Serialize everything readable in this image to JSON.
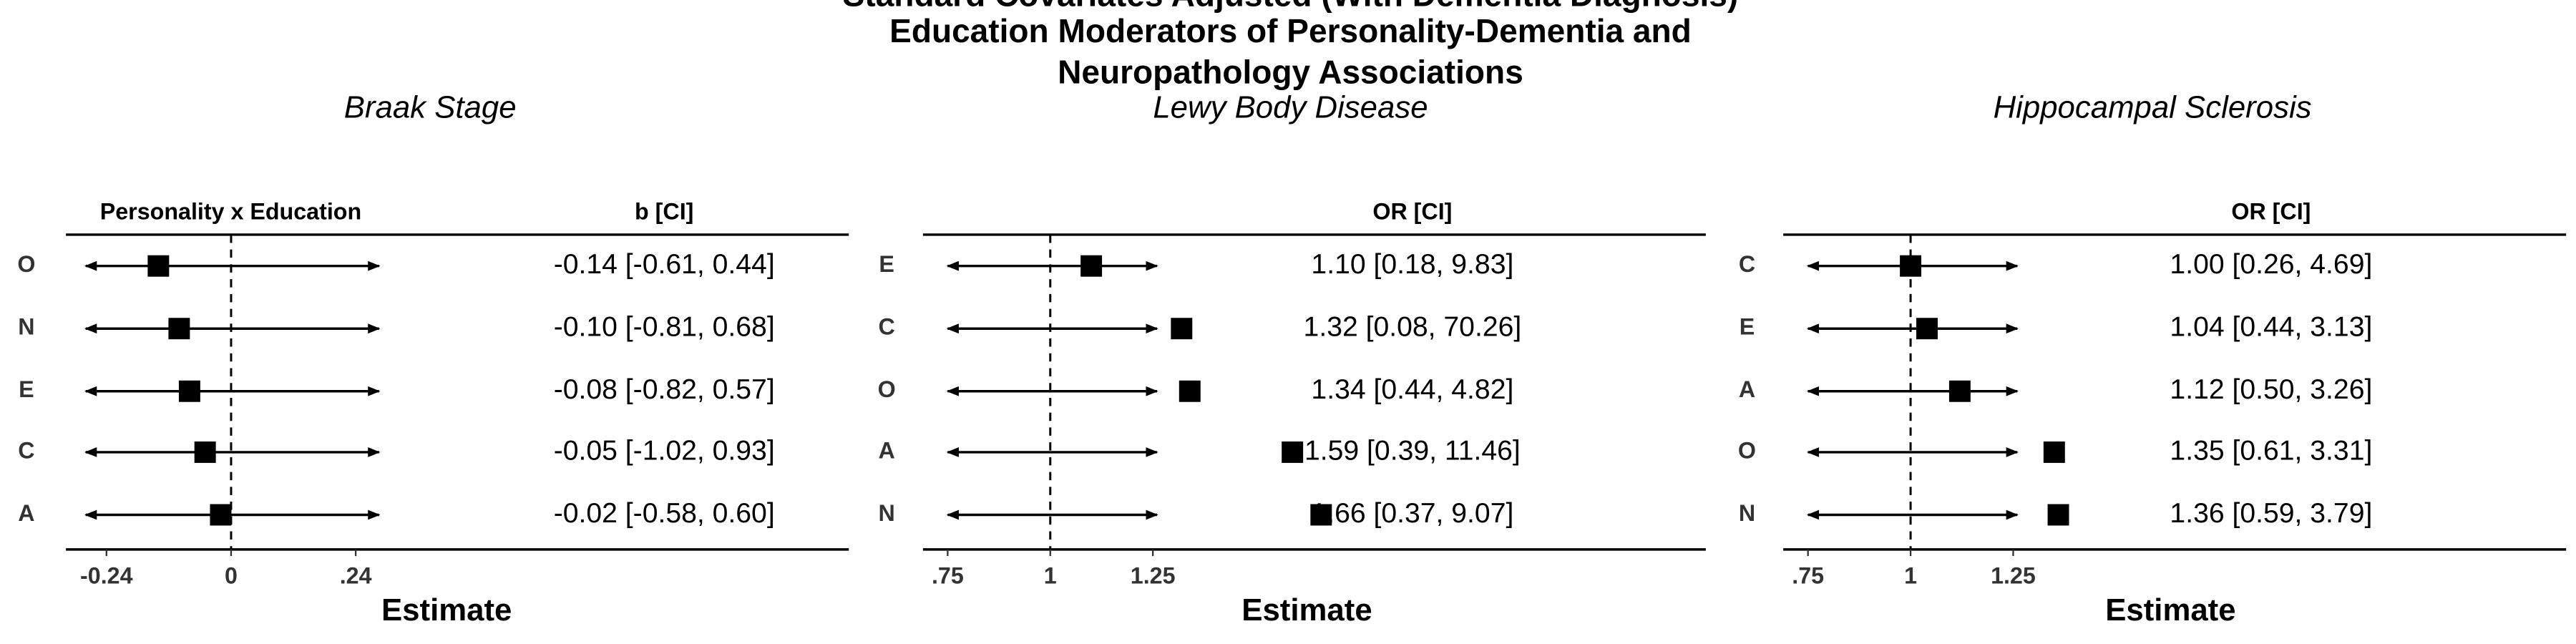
{
  "title": [
    "Standard Covariates Adjusted (With Dementia Diagnosis)",
    "Education Moderators of Personality-Dementia and",
    "Neuropathology Associations"
  ],
  "chart_data": [
    {
      "type": "forest",
      "subtitle": "Braak Stage",
      "label_header": "Personality x Education",
      "value_header": "b [CI]",
      "categories": [
        "O",
        "N",
        "E",
        "C",
        "A"
      ],
      "values": [
        -0.14,
        -0.1,
        -0.08,
        -0.05,
        -0.02
      ],
      "lower": [
        -0.61,
        -0.81,
        -0.82,
        -1.02,
        -0.58
      ],
      "upper": [
        0.44,
        0.68,
        0.57,
        0.93,
        0.6
      ],
      "value_labels": [
        "-0.14 [-0.61, 0.44]",
        "-0.10 [-0.81, 0.68]",
        "-0.08 [-0.82, 0.57]",
        "-0.05 [-1.02, 0.93]",
        "-0.02 [-0.58, 0.60]"
      ],
      "xlim": [
        -0.28,
        0.285
      ],
      "xticks": [
        -0.24,
        0,
        {
          "value": 0.24,
          "label": ".24"
        }
      ],
      "ref_line": 0,
      "xlabel": "Estimate",
      "color": "#000000"
    },
    {
      "type": "forest",
      "subtitle": "Lewy Body Disease",
      "value_header": "OR [CI]",
      "categories": [
        "E",
        "C",
        "O",
        "A",
        "N"
      ],
      "values": [
        1.1,
        1.32,
        1.34,
        1.59,
        1.66
      ],
      "lower": [
        0.18,
        0.08,
        0.44,
        0.39,
        0.37
      ],
      "upper": [
        9.83,
        70.26,
        4.82,
        11.46,
        9.07
      ],
      "value_labels": [
        "1.10 [0.18, 9.83]",
        "1.32 [0.08, 70.26]",
        "1.34 [0.44, 4.82]",
        "1.59 [0.39, 11.46]",
        "1.66 [0.37, 9.07]"
      ],
      "xlim": [
        0.75,
        1.26
      ],
      "xticks": [
        {
          "value": 0.75,
          "label": ".75"
        },
        1,
        1.25
      ],
      "ref_line": 1,
      "xlabel": "Estimate",
      "color": "#000000"
    },
    {
      "type": "forest",
      "subtitle": "Hippocampal Sclerosis",
      "value_header": "OR [CI]",
      "categories": [
        "C",
        "E",
        "A",
        "O",
        "N"
      ],
      "values": [
        1.0,
        1.04,
        1.12,
        1.35,
        1.36
      ],
      "lower": [
        0.26,
        0.44,
        0.5,
        0.61,
        0.59
      ],
      "upper": [
        4.69,
        3.13,
        3.26,
        3.31,
        3.79
      ],
      "value_labels": [
        "1.00 [0.26, 4.69]",
        "1.04 [0.44, 3.13]",
        "1.12 [0.50, 3.26]",
        "1.35 [0.61, 3.31]",
        "1.36 [0.59, 3.79]"
      ],
      "xlim": [
        0.75,
        1.26
      ],
      "xticks": [
        {
          "value": 0.75,
          "label": ".75"
        },
        1,
        1.25
      ],
      "ref_line": 1,
      "xlabel": "Estimate",
      "color": "#000000"
    }
  ]
}
